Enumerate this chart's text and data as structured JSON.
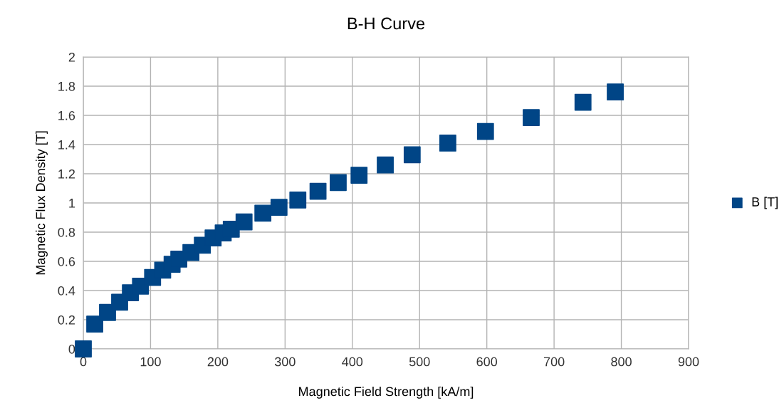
{
  "chart_data": {
    "type": "scatter",
    "title": "B-H Curve",
    "xlabel": "Magnetic Field Strength [kA/m]",
    "ylabel": "Magnetic Flux Density [T]",
    "x": [
      0,
      17,
      36,
      54,
      70,
      85,
      103,
      118,
      132,
      142,
      160,
      177,
      193,
      208,
      220,
      239,
      267,
      291,
      319,
      349,
      379,
      410,
      449,
      489,
      542,
      598,
      666,
      743,
      791
    ],
    "series": [
      {
        "name": "B [T]",
        "color": "#004586",
        "values": [
          0,
          0.17,
          0.25,
          0.32,
          0.385,
          0.43,
          0.49,
          0.54,
          0.58,
          0.615,
          0.66,
          0.71,
          0.76,
          0.795,
          0.82,
          0.87,
          0.93,
          0.97,
          1.02,
          1.08,
          1.14,
          1.19,
          1.26,
          1.33,
          1.41,
          1.49,
          1.585,
          1.69,
          1.76
        ]
      }
    ],
    "xlim": [
      0,
      900
    ],
    "xticks": [
      0,
      100,
      200,
      300,
      400,
      500,
      600,
      700,
      800,
      900
    ],
    "ylim": [
      0,
      2
    ],
    "yticks": [
      0,
      0.2,
      0.4,
      0.6,
      0.8,
      1,
      1.2,
      1.4,
      1.6,
      1.8,
      2
    ],
    "grid": true,
    "legend": "right",
    "marker": "square"
  }
}
